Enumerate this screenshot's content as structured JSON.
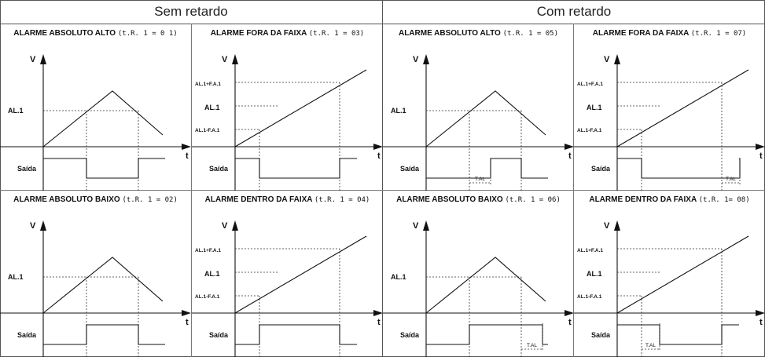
{
  "headers": {
    "left": "Sem retardo",
    "right": "Com retardo"
  },
  "labels": {
    "v": "V",
    "t": "t",
    "al1": "AL.1",
    "al1_plus": "AL.1+F.A.1",
    "al1_minus": "AL.1-F.A.1",
    "saida": "Saída",
    "tal": "T.AL"
  },
  "panels": [
    {
      "title": "ALARME ABSOLUTO ALTO",
      "code": "(t.R. 1 = 0 1)",
      "kind": "abs",
      "inv": false,
      "delay": null
    },
    {
      "title": "ALARME FORA DA FAIXA",
      "code": "(t.R. 1 = 03)",
      "kind": "band",
      "inv": false,
      "delay": null
    },
    {
      "title": "ALARME ABSOLUTO ALTO",
      "code": "(t.R. 1 = 05)",
      "kind": "abs",
      "inv": false,
      "delay": "on"
    },
    {
      "title": "ALARME FORA DA FAIXA",
      "code": "(t.R. 1 = 07)",
      "kind": "band",
      "inv": false,
      "delay": "off"
    },
    {
      "title": "ALARME ABSOLUTO BAIXO",
      "code": "(t.R. 1 = 02)",
      "kind": "abs",
      "inv": true,
      "delay": null
    },
    {
      "title": "ALARME DENTRO DA FAIXA",
      "code": "(t.R. 1 = 04)",
      "kind": "band",
      "inv": true,
      "delay": null
    },
    {
      "title": "ALARME ABSOLUTO BAIXO",
      "code": "(t.R. 1 = 06)",
      "kind": "abs",
      "inv": true,
      "delay": "off"
    },
    {
      "title": "ALARME DENTRO DA FAIXA",
      "code": "(t.R. 1= 08)",
      "kind": "band",
      "inv": true,
      "delay": "on"
    }
  ]
}
